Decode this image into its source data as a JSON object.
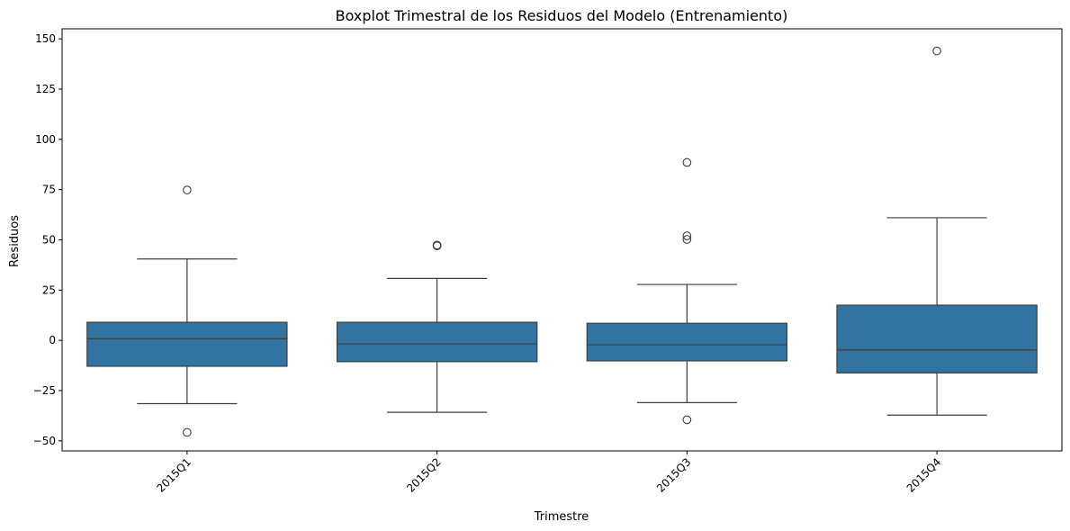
{
  "chart_data": {
    "type": "boxplot",
    "title": "Boxplot Trimestral de los Residuos del Modelo (Entrenamiento)",
    "xlabel": "Trimestre",
    "ylabel": "Residuos",
    "ylim": [
      -55,
      155
    ],
    "yticks": [
      -50,
      -25,
      0,
      25,
      50,
      75,
      100,
      125,
      150
    ],
    "ytick_labels": [
      "−50",
      "−25",
      "0",
      "25",
      "50",
      "75",
      "100",
      "125",
      "150"
    ],
    "grid": false,
    "legend": "none",
    "box_color": "#3274a1",
    "categories": [
      "2015Q1",
      "2015Q2",
      "2015Q3",
      "2015Q4"
    ],
    "boxes": [
      {
        "category": "2015Q1",
        "whisker_low": -31.5,
        "q1": -12.9,
        "median": 0.8,
        "q3": 9.0,
        "whisker_high": 40.5,
        "outliers": [
          74.8,
          -45.8
        ]
      },
      {
        "category": "2015Q2",
        "whisker_low": -35.8,
        "q1": -10.6,
        "median": -1.8,
        "q3": 9.0,
        "whisker_high": 30.8,
        "outliers": [
          47.0,
          47.4
        ]
      },
      {
        "category": "2015Q3",
        "whisker_low": -31.0,
        "q1": -10.2,
        "median": -2.2,
        "q3": 8.5,
        "whisker_high": 27.8,
        "outliers": [
          88.5,
          52.0,
          50.2,
          -39.5
        ]
      },
      {
        "category": "2015Q4",
        "whisker_low": -37.2,
        "q1": -16.2,
        "median": -4.8,
        "q3": 17.5,
        "whisker_high": 61.0,
        "outliers": [
          144.0
        ]
      }
    ]
  }
}
